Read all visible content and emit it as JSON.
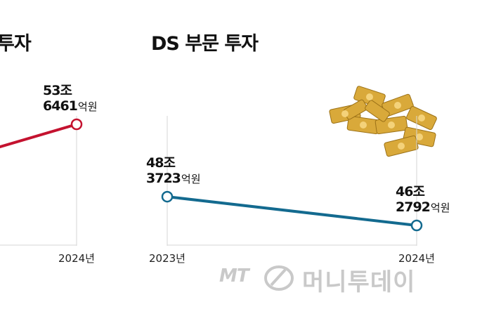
{
  "titles": {
    "left": "투자",
    "right": "DS 부문 투자"
  },
  "colors": {
    "left_series": "#c4122f",
    "right_series": "#136a8f",
    "axis": "#d6d6d6",
    "money": "#d9a93a"
  },
  "chart_data": [
    {
      "type": "line",
      "title": "투자",
      "categories": [
        "2024년"
      ],
      "series": [
        {
          "values": [
            53.6461
          ]
        }
      ],
      "data_labels": [
        {
          "line1": "53조",
          "num": "6461",
          "unit": "억원"
        }
      ],
      "unit": "조원"
    },
    {
      "type": "line",
      "title": "DS 부문 투자",
      "categories": [
        "2023년",
        "2024년"
      ],
      "series": [
        {
          "values": [
            48.3723,
            46.2792
          ]
        }
      ],
      "data_labels": [
        {
          "line1": "48조",
          "num": "3723",
          "unit": "억원"
        },
        {
          "line1": "46조",
          "num": "2792",
          "unit": "억원"
        }
      ],
      "unit": "조원"
    }
  ],
  "watermark": {
    "mt": "MT",
    "text": "머니투데이"
  }
}
